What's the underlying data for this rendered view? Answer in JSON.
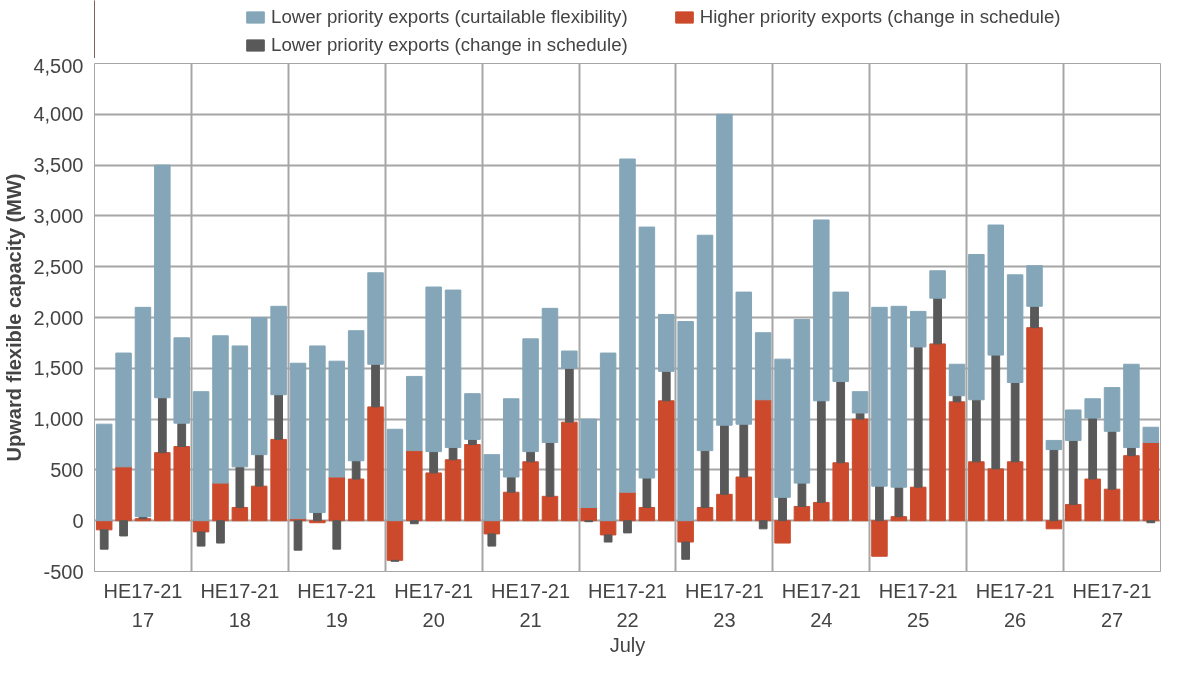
{
  "chart_data": {
    "type": "bar",
    "stacked": true,
    "ylabel": "Upward flexible capacity (MW)",
    "xlabel": "July",
    "categories": [
      null,
      null,
      "HE17-21\n17",
      null,
      null,
      null,
      null,
      "HE17-21\n18",
      null,
      null,
      null,
      null,
      "HE17-21\n19",
      null,
      null,
      null,
      null,
      "HE17-21\n20",
      null,
      null,
      null,
      null,
      "HE17-21\n21",
      null,
      null,
      null,
      null,
      "HE17-21\n22",
      null,
      null,
      null,
      null,
      "HE17-21\n23",
      null,
      null,
      null,
      null,
      "HE17-21\n24",
      null,
      null,
      null,
      null,
      "HE17-21\n25",
      null,
      null,
      null,
      null,
      "HE17-21\n26",
      null,
      null,
      null,
      null,
      "HE17-21\n27",
      null,
      null
    ],
    "ylim": [
      -500,
      4500
    ],
    "yticks": [
      -500,
      0,
      500,
      {
        "value": 1000,
        "label": "1,000"
      },
      {
        "value": 1500,
        "label": "1,500"
      },
      {
        "value": 2000,
        "label": "2,000"
      },
      {
        "value": 2500,
        "label": "2,500"
      },
      {
        "value": 3000,
        "label": "3,000"
      },
      {
        "value": 3500,
        "label": "3,500"
      },
      {
        "value": 4000,
        "label": "4,000"
      },
      {
        "value": 4500,
        "label": "4,500"
      }
    ],
    "grid": true,
    "legend": "top",
    "series": [
      {
        "name": "Higher priority exports (change in schedule)",
        "color": "#cc4a2b",
        "values": [
          -90,
          530,
          20,
          670,
          730,
          -110,
          370,
          130,
          340,
          800,
          20,
          -20,
          430,
          410,
          1120,
          -390,
          690,
          470,
          600,
          750,
          -130,
          280,
          580,
          240,
          970,
          130,
          -140,
          280,
          130,
          1180,
          -210,
          130,
          260,
          430,
          1190,
          -220,
          140,
          180,
          570,
          1000,
          -350,
          40,
          330,
          1740,
          1170,
          580,
          510,
          580,
          1900,
          -80,
          160,
          410,
          310,
          640,
          770
        ]
      },
      {
        "name": "Lower priority exports (change in schedule)",
        "color": "#595959",
        "values": [
          -190,
          -150,
          20,
          540,
          230,
          -140,
          -220,
          400,
          310,
          440,
          -290,
          80,
          -280,
          180,
          420,
          -10,
          -30,
          210,
          120,
          50,
          -120,
          150,
          100,
          530,
          530,
          -10,
          -70,
          -120,
          290,
          290,
          -170,
          560,
          680,
          520,
          -80,
          230,
          230,
          1000,
          800,
          60,
          340,
          290,
          1380,
          450,
          60,
          610,
          1120,
          780,
          210,
          700,
          630,
          600,
          570,
          80,
          -20
        ]
      },
      {
        "name": "Lower priority exports (curtailable flexibility)",
        "color": "#84a6b8",
        "values": [
          950,
          1120,
          2060,
          2290,
          840,
          1270,
          1450,
          1190,
          1350,
          870,
          1530,
          1640,
          1140,
          1280,
          900,
          900,
          730,
          1620,
          1550,
          450,
          650,
          770,
          1110,
          1320,
          170,
          870,
          1650,
          3280,
          2470,
          560,
          1960,
          2120,
          3060,
          1300,
          660,
          1360,
          1610,
          1780,
          880,
          210,
          1760,
          1780,
          350,
          270,
          310,
          1430,
          1280,
          1060,
          400,
          90,
          300,
          190,
          430,
          820,
          150
        ]
      }
    ]
  }
}
